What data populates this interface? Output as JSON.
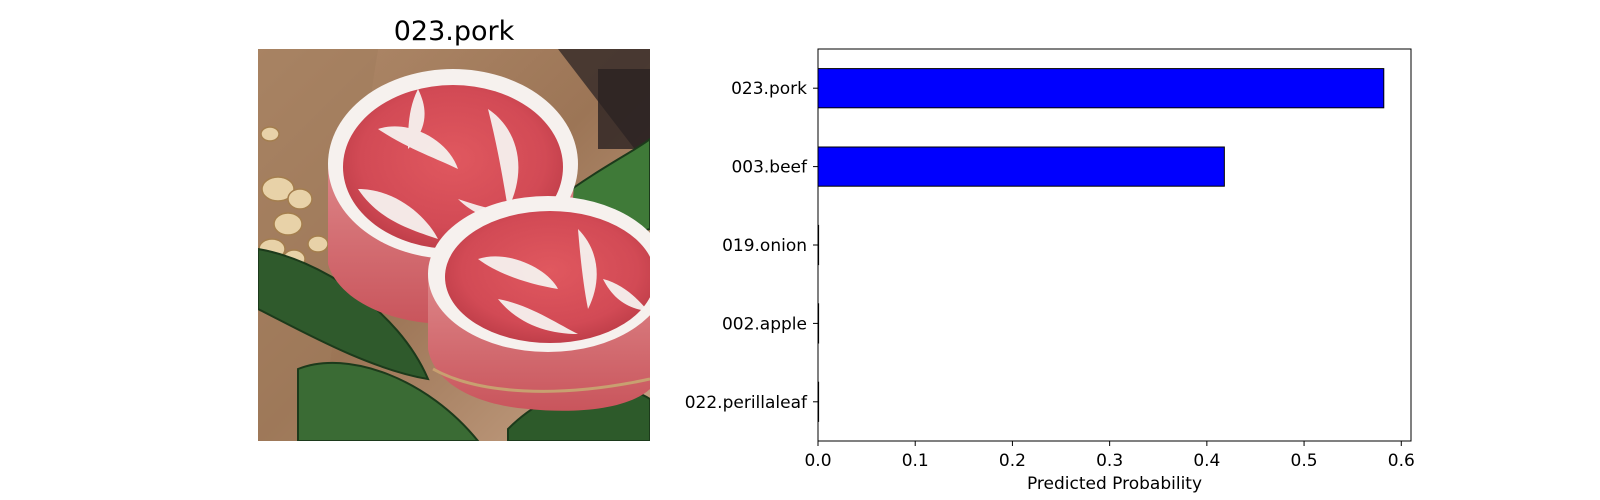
{
  "image_panel": {
    "title": "023.pork",
    "photo_subject": "two raw pork neck steaks on leaves with mushrooms"
  },
  "chart_data": {
    "type": "bar",
    "orientation": "horizontal",
    "categories": [
      "023.pork",
      "003.beef",
      "019.onion",
      "002.apple",
      "022.perillaleaf"
    ],
    "values": [
      0.582,
      0.418,
      0.0005,
      0.0003,
      0.0002
    ],
    "title": "",
    "xlabel": "Predicted Probability",
    "ylabel": "",
    "xlim": [
      0,
      0.61
    ],
    "xticks": [
      "0.0",
      "0.1",
      "0.2",
      "0.3",
      "0.4",
      "0.5",
      "0.6"
    ],
    "xtick_values": [
      0.0,
      0.1,
      0.2,
      0.3,
      0.4,
      0.5,
      0.6
    ],
    "bar_color": "#0000ff",
    "edge_color": "#000000",
    "grid": false,
    "legend": "none"
  }
}
